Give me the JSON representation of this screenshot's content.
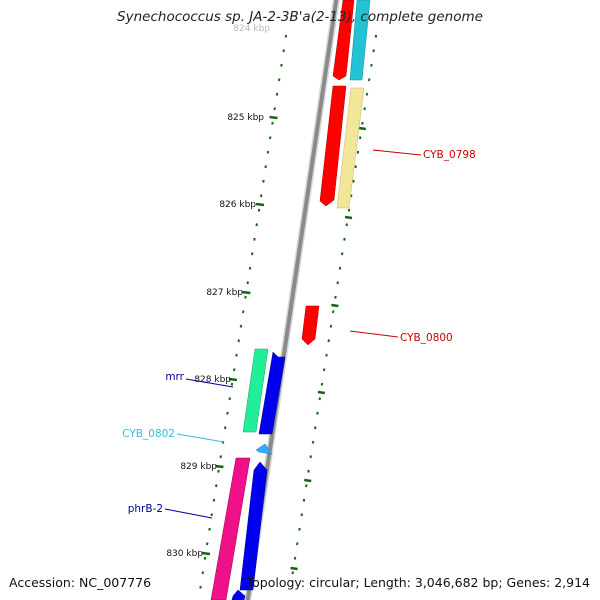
{
  "title": "Synechococcus sp. JA-2-3B'a(2-13), complete genome",
  "accession": "Accession: NC_007776",
  "summary": "Topology: circular; Length: 3,046,682 bp; Genes: 2,914",
  "scale": {
    "partial_top_label": "824 kbp",
    "ticks": [
      {
        "label": "825 kbp"
      },
      {
        "label": "826 kbp"
      },
      {
        "label": "827 kbp"
      },
      {
        "label": "828 kbp"
      },
      {
        "label": "829 kbp"
      },
      {
        "label": "830 kbp"
      }
    ]
  },
  "gene_labels": [
    {
      "label": "CYB_0798",
      "color": "#cc0000"
    },
    {
      "label": "CYB_0800",
      "color": "#cc0000"
    },
    {
      "label": "mrr",
      "color": "#000099"
    },
    {
      "label": "CYB_0802",
      "color": "#33bbdd"
    },
    {
      "label": "phrB-2",
      "color": "#000099"
    }
  ],
  "colors": {
    "backbone": "#909090",
    "red_gene": "#ff0000",
    "cyan_gene": "#22c4d4",
    "yellow_gene": "#f2e69a",
    "green_gene": "#22ee99",
    "blue_gene": "#0000ee",
    "magenta_gene": "#ee1188",
    "light_blue_gene": "#33aaff",
    "tick": "#116611"
  }
}
